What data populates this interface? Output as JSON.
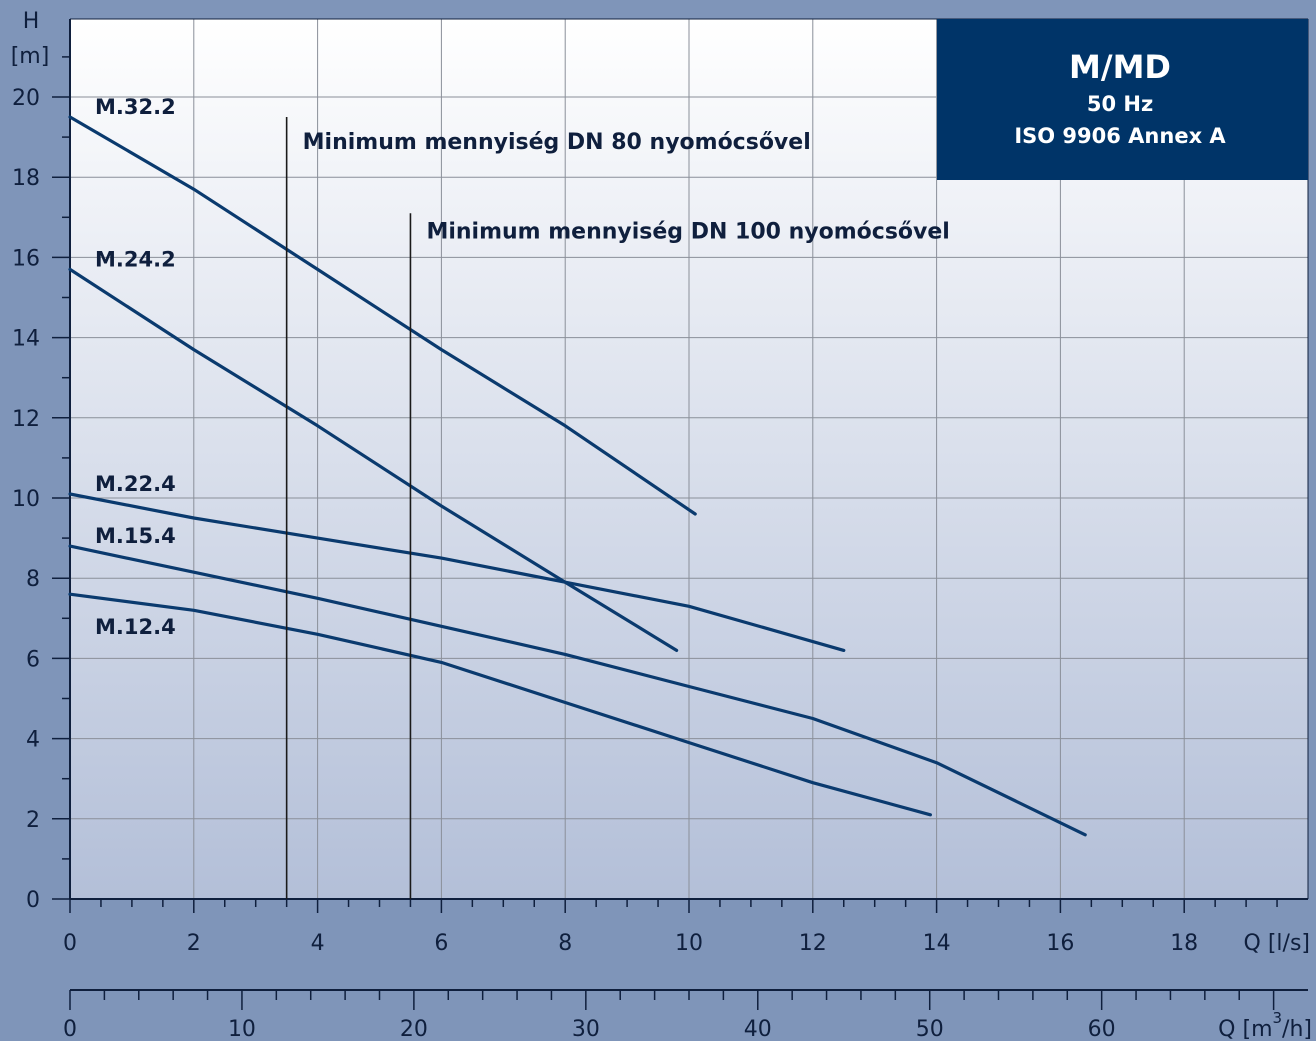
{
  "chart_data": {
    "type": "line",
    "title_box": {
      "title": "M/MD",
      "line1": "50 Hz",
      "line2": "ISO 9906 Annex A",
      "background": "#003468"
    },
    "y_axis": {
      "label_top": "H",
      "label_unit": "[m]",
      "range": [
        0,
        21
      ],
      "ticks": [
        0,
        2,
        4,
        6,
        8,
        10,
        12,
        14,
        16,
        18,
        20
      ]
    },
    "x_axis": {
      "label": "Q [l/s]",
      "range": [
        0,
        20
      ],
      "ticks": [
        0,
        2,
        4,
        6,
        8,
        10,
        12,
        14,
        16,
        18
      ]
    },
    "x2_axis": {
      "label_prefix": "Q [m",
      "label_sup": "3",
      "label_suffix": "/h]",
      "ticks": [
        0,
        10,
        20,
        30,
        40,
        50,
        60
      ]
    },
    "grid": true,
    "colors": {
      "curve": "#0a3a6e",
      "plot_bg_top": "#ffffff",
      "plot_bg_bottom": "#b3bfd8",
      "page_bg": "#7f95b9"
    },
    "series": [
      {
        "name": "M.32.2",
        "x": [
          0,
          2,
          4,
          6,
          8,
          10.1
        ],
        "y": [
          19.5,
          17.7,
          15.7,
          13.7,
          11.8,
          9.6
        ]
      },
      {
        "name": "M.24.2",
        "x": [
          0,
          2,
          4,
          6,
          8,
          9.8
        ],
        "y": [
          15.7,
          13.7,
          11.8,
          9.8,
          7.9,
          6.2
        ]
      },
      {
        "name": "M.22.4",
        "x": [
          0,
          2,
          4,
          6,
          8,
          10,
          12.5
        ],
        "y": [
          10.1,
          9.5,
          9.0,
          8.5,
          7.9,
          7.3,
          6.2
        ]
      },
      {
        "name": "M.15.4",
        "x": [
          0,
          2,
          4,
          6,
          8,
          10,
          12,
          14,
          16.4
        ],
        "y": [
          8.8,
          8.15,
          7.5,
          6.8,
          6.1,
          5.3,
          4.5,
          3.4,
          1.6
        ]
      },
      {
        "name": "M.12.4",
        "x": [
          0,
          2,
          4,
          6,
          8,
          10,
          12,
          13.9
        ],
        "y": [
          7.6,
          7.2,
          6.6,
          5.9,
          4.9,
          3.9,
          2.9,
          2.1
        ]
      }
    ],
    "annotations": [
      {
        "text": "Minimum mennyiség DN 80 nyomócsővel",
        "x": 3.5,
        "y_top": 19.5
      },
      {
        "text": "Minimum mennyiség DN 100 nyomócsővel",
        "x": 5.5,
        "y_top": 17.1
      }
    ]
  }
}
